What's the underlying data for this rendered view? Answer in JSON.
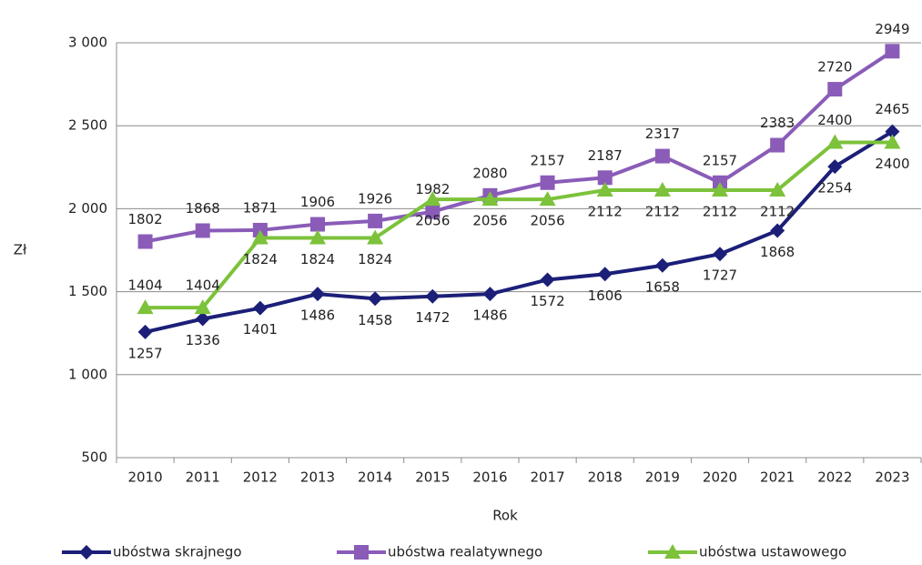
{
  "chart_data": {
    "type": "line",
    "x_label": "Rok",
    "y_label": "Zł",
    "categories": [
      "2010",
      "2011",
      "2012",
      "2013",
      "2014",
      "2015",
      "2016",
      "2017",
      "2018",
      "2019",
      "2020",
      "2021",
      "2022",
      "2023"
    ],
    "series": [
      {
        "name": "ubóstwa skrajnego",
        "color": "#1c1f78",
        "marker": "diamond",
        "values": [
          1257,
          1336,
          1401,
          1486,
          1458,
          1472,
          1486,
          1572,
          1606,
          1658,
          1727,
          1868,
          2254,
          2465
        ]
      },
      {
        "name": "ubóstwa realatywnego",
        "color": "#8a5cb8",
        "marker": "square",
        "values": [
          1802,
          1868,
          1871,
          1906,
          1926,
          1982,
          2080,
          2157,
          2187,
          2317,
          2157,
          2383,
          2720,
          2949
        ]
      },
      {
        "name": "ubóstwa ustawowego",
        "color": "#7cc23a",
        "marker": "triangle",
        "values": [
          1404,
          1404,
          1824,
          1824,
          1824,
          2056,
          2056,
          2056,
          2112,
          2112,
          2112,
          2112,
          2400,
          2400
        ]
      }
    ],
    "ylim": [
      500,
      3000
    ],
    "yticks": [
      500,
      {
        "value": 1000,
        "label": "1 000"
      },
      {
        "value": 1500,
        "label": "1 500"
      },
      {
        "value": 2000,
        "label": "2 000"
      },
      {
        "value": 2500,
        "label": "2 500"
      },
      {
        "value": 3000,
        "label": "3 000"
      }
    ],
    "grid": true,
    "legend": "bottom"
  }
}
